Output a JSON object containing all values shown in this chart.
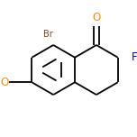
{
  "background_color": "#ffffff",
  "bond_color": "#000000",
  "bond_width": 1.3,
  "atom_colors": {
    "Br": "#8B4513",
    "O_ketone": "#FF8C00",
    "F": "#0000CD",
    "O_methoxy": "#FF8C00"
  },
  "font_size": 7.0,
  "figsize": [
    1.52,
    1.52
  ],
  "dpi": 100
}
